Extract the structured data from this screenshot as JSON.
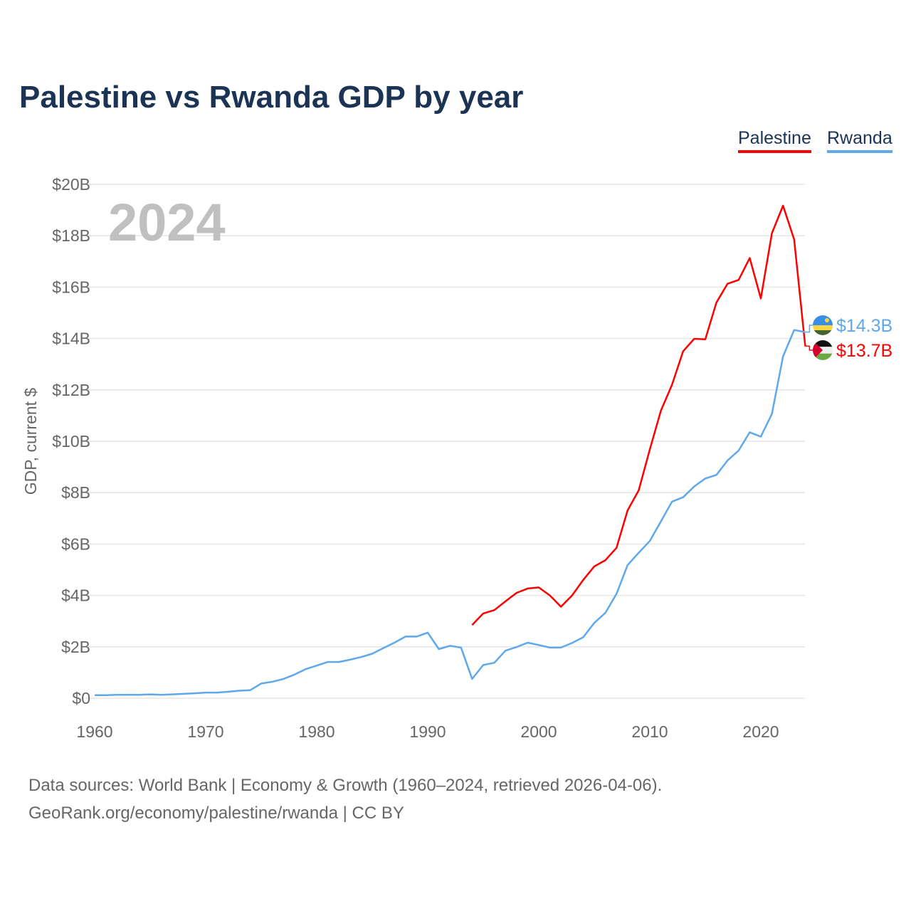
{
  "title": "Palestine vs Rwanda GDP by year",
  "source_line1": "Data sources: World Bank | Economy & Growth (1960–2024, retrieved 2026-04-06).",
  "source_line2": "GeoRank.org/economy/palestine/rwanda | CC BY",
  "chart_data": {
    "type": "line",
    "title": "Palestine vs Rwanda GDP by year",
    "xlabel": "",
    "ylabel": "GDP, current $",
    "year_label": "2024",
    "xlim": [
      1960,
      2024
    ],
    "ylim": [
      0,
      20
    ],
    "x_ticks": [
      1960,
      1970,
      1980,
      1990,
      2000,
      2010,
      2020
    ],
    "y_ticks": [
      0,
      2,
      4,
      6,
      8,
      10,
      12,
      14,
      16,
      18,
      20
    ],
    "y_tick_labels": [
      "$0",
      "$2B",
      "$4B",
      "$6B",
      "$8B",
      "$10B",
      "$12B",
      "$14B",
      "$16B",
      "$18B",
      "$20B"
    ],
    "grid": true,
    "legend_position": "top-right",
    "series": [
      {
        "name": "Palestine",
        "color": "#ff0000",
        "end_label": "$13.7B",
        "start_year": 1994,
        "values": [
          2.85,
          3.3,
          3.43,
          3.77,
          4.1,
          4.27,
          4.31,
          4.0,
          3.56,
          4.0,
          4.6,
          5.13,
          5.37,
          5.85,
          7.31,
          8.09,
          9.68,
          11.19,
          12.2,
          13.5,
          13.99,
          13.97,
          15.4,
          16.13,
          16.28,
          17.13,
          15.56,
          18.1,
          19.17,
          17.86,
          13.7
        ]
      },
      {
        "name": "Rwanda",
        "color": "#5ea8ec",
        "end_label": "$14.3B",
        "start_year": 1960,
        "values": [
          0.12,
          0.12,
          0.13,
          0.13,
          0.13,
          0.15,
          0.13,
          0.15,
          0.17,
          0.19,
          0.22,
          0.22,
          0.25,
          0.29,
          0.31,
          0.57,
          0.64,
          0.75,
          0.92,
          1.13,
          1.27,
          1.41,
          1.41,
          1.5,
          1.6,
          1.73,
          1.95,
          2.16,
          2.4,
          2.4,
          2.55,
          1.91,
          2.04,
          1.97,
          0.75,
          1.29,
          1.38,
          1.85,
          1.99,
          2.16,
          2.07,
          1.97,
          1.97,
          2.15,
          2.37,
          2.93,
          3.32,
          4.06,
          5.18,
          5.66,
          6.12,
          6.88,
          7.65,
          7.82,
          8.24,
          8.55,
          8.69,
          9.25,
          9.64,
          10.35,
          10.18,
          11.07,
          13.3,
          14.33,
          14.25
        ]
      }
    ]
  }
}
